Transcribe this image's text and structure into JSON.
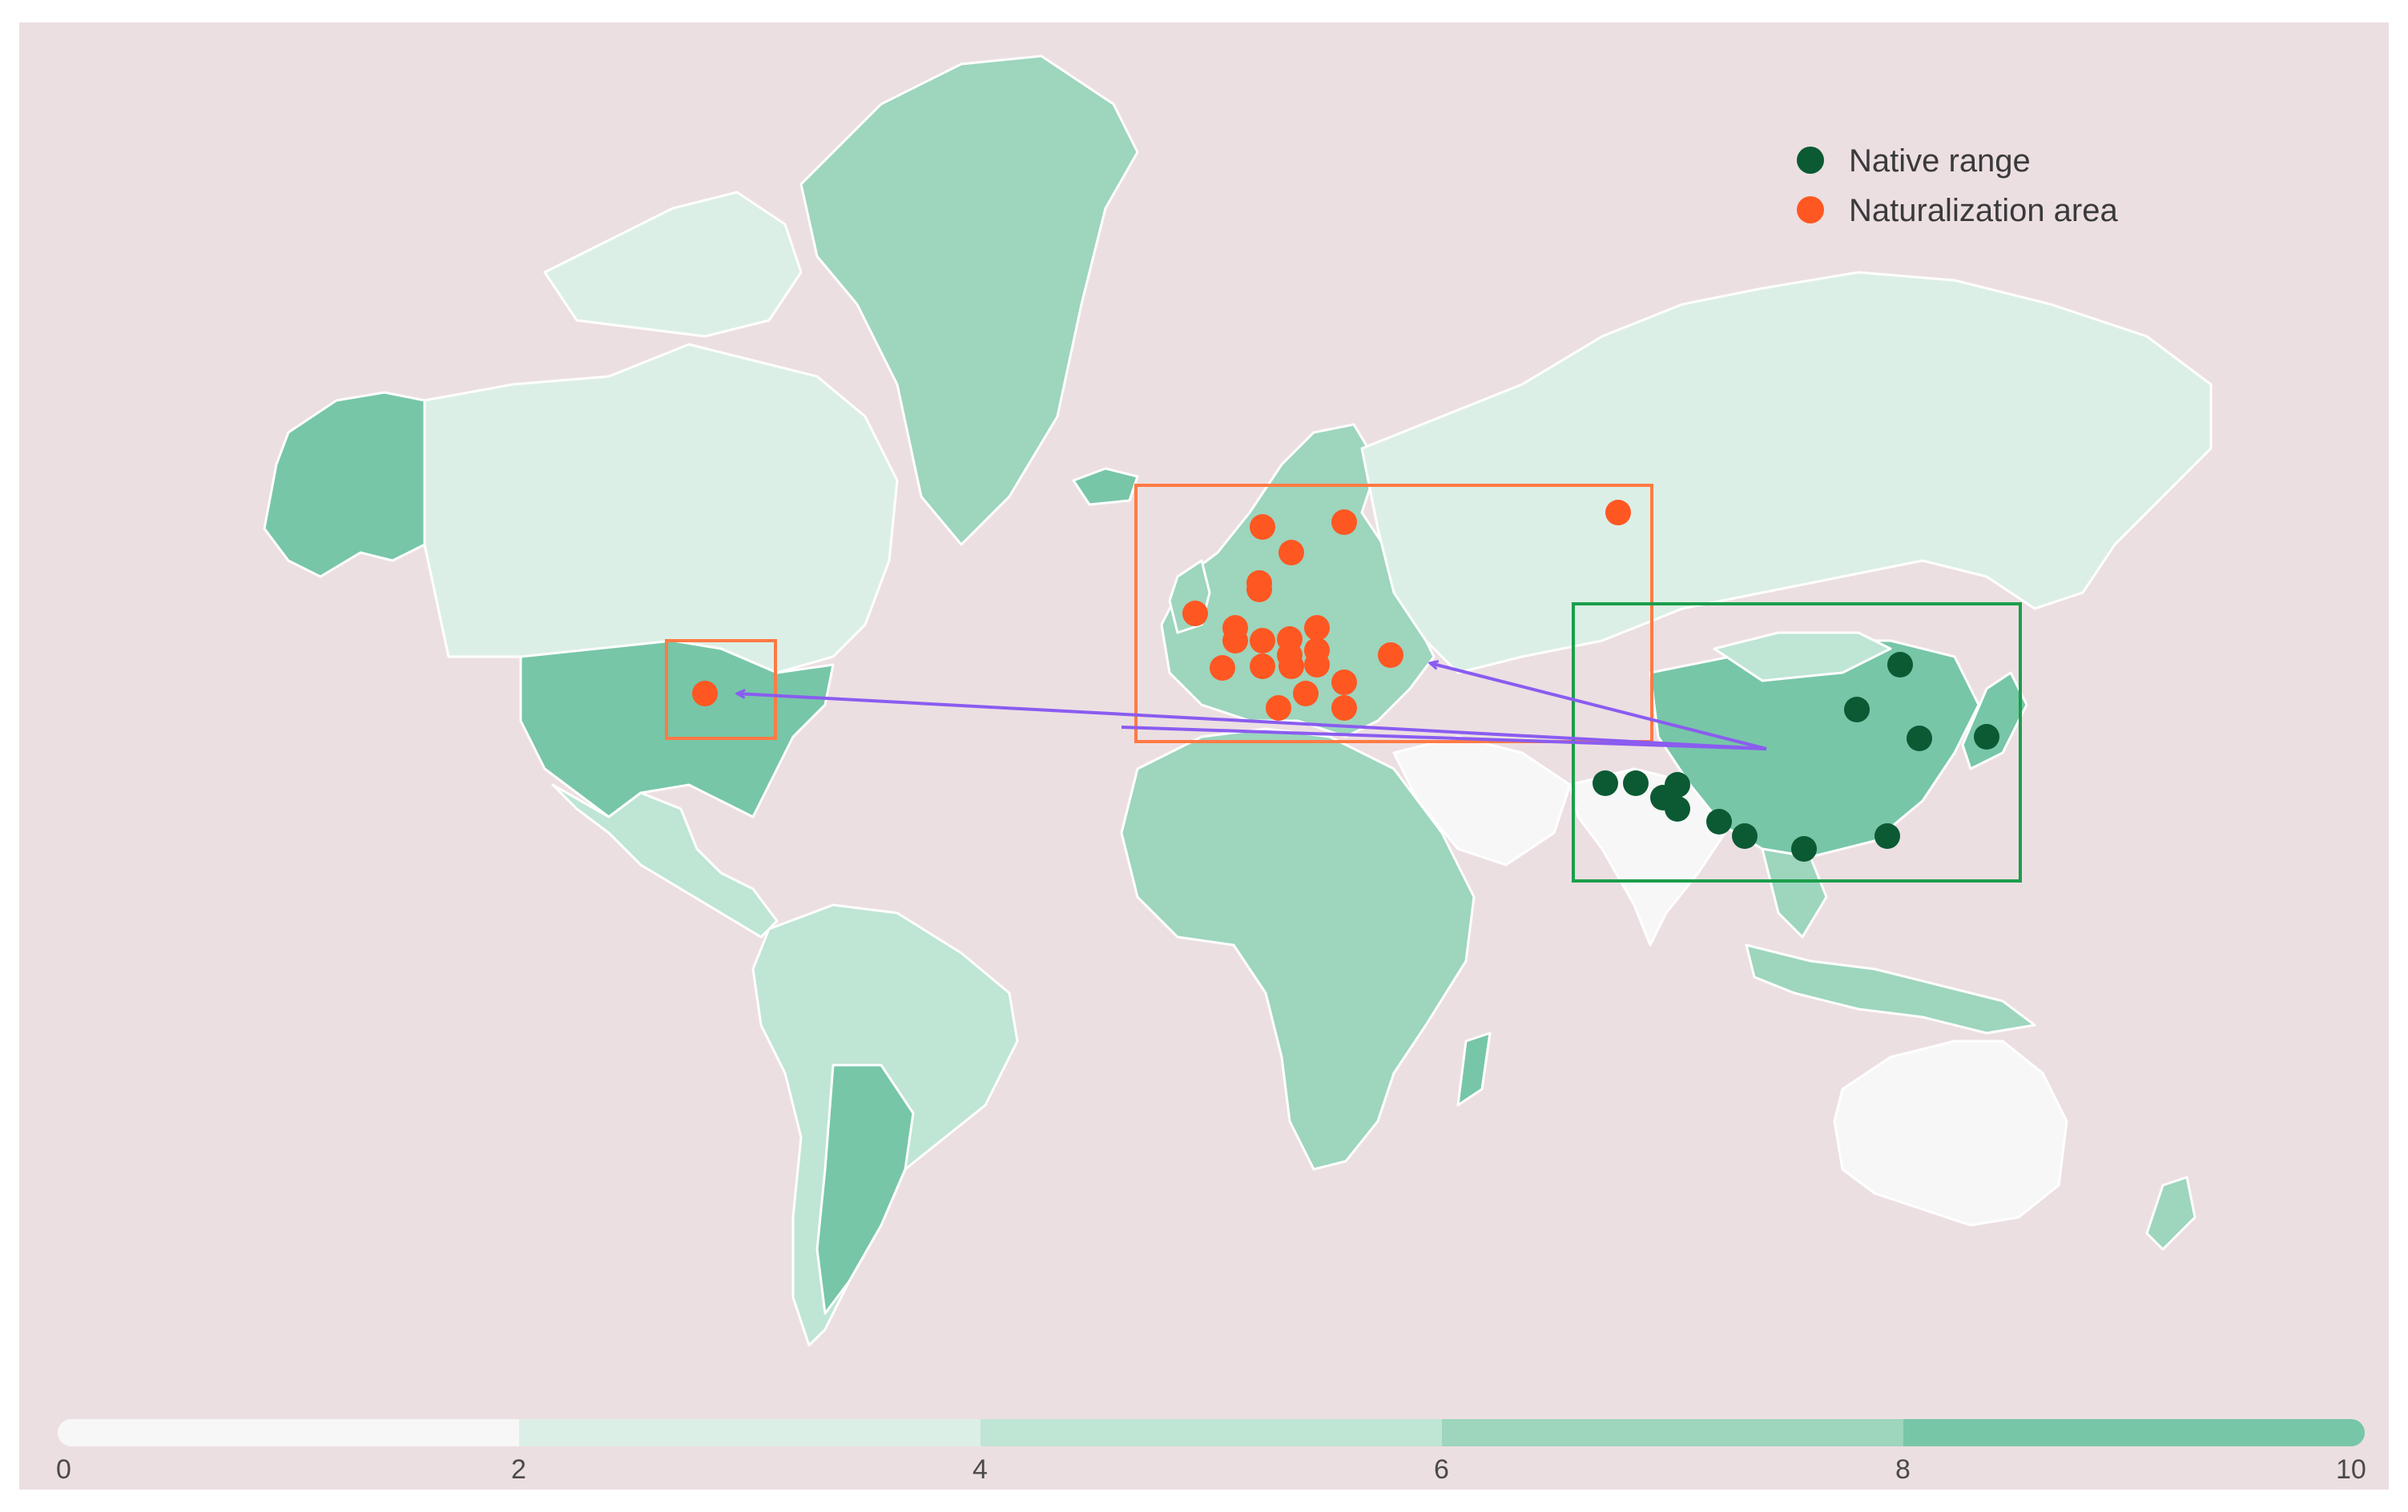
{
  "legend": {
    "native_label": "Native range",
    "naturalization_label": "Naturalization area"
  },
  "colors": {
    "ocean": "#ecdfe2",
    "native_dot": "#0b5a33",
    "naturalization_dot": "#ff5722",
    "native_box": "#1b9e4b",
    "naturalization_box": "#ff7a45",
    "arrow": "#8a5cf0",
    "scale": [
      "#f7f7f7",
      "#dcefe6",
      "#bfe5d5",
      "#9dd5bd",
      "#77c6a8"
    ]
  },
  "color_scale": {
    "ticks": [
      "0",
      "2",
      "4",
      "6",
      "8",
      "10"
    ]
  },
  "regions": {
    "native_box_label": "",
    "naturalization_boxes": 2
  }
}
